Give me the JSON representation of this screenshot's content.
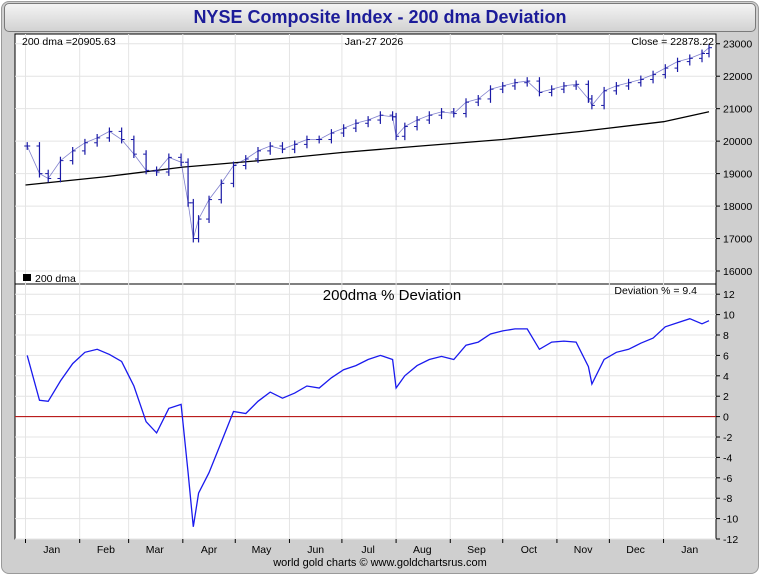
{
  "title": "NYSE Composite Index - 200 dma Deviation",
  "footer": "world gold charts © www.goldchartsrus.com",
  "colors": {
    "price": "#1a1aa6",
    "dma": "#000000",
    "deviation": "#1a1aee",
    "zero_line": "#b30000"
  },
  "chart_data": [
    {
      "type": "line",
      "panel": "price",
      "date_label": "Jan-27  2026",
      "dma_label": "200 dma =20905.63",
      "close_label": "Close = 22878.22",
      "legend": "200 dma",
      "ylim": [
        15600,
        23300
      ],
      "yticks": [
        16000,
        17000,
        18000,
        19000,
        20000,
        21000,
        22000,
        23000
      ],
      "x_months": [
        "Jan",
        "Feb",
        "Mar",
        "Apr",
        "May",
        "Jun",
        "Jul",
        "Aug",
        "Sep",
        "Oct",
        "Nov",
        "Dec",
        "Jan"
      ],
      "series": [
        {
          "legend_name": "Close",
          "style": "ohlc",
          "x": [
            "2025-01-02",
            "2025-01-09",
            "2025-01-14",
            "2025-01-21",
            "2025-01-28",
            "2025-02-04",
            "2025-02-11",
            "2025-02-18",
            "2025-02-25",
            "2025-03-04",
            "2025-03-11",
            "2025-03-17",
            "2025-03-24",
            "2025-03-31",
            "2025-04-04",
            "2025-04-07",
            "2025-04-10",
            "2025-04-16",
            "2025-04-23",
            "2025-04-30",
            "2025-05-07",
            "2025-05-14",
            "2025-05-21",
            "2025-05-28",
            "2025-06-04",
            "2025-06-11",
            "2025-06-18",
            "2025-06-25",
            "2025-07-02",
            "2025-07-09",
            "2025-07-16",
            "2025-07-23",
            "2025-07-30",
            "2025-08-01",
            "2025-08-06",
            "2025-08-13",
            "2025-08-20",
            "2025-08-27",
            "2025-09-03",
            "2025-09-10",
            "2025-09-17",
            "2025-09-24",
            "2025-10-01",
            "2025-10-08",
            "2025-10-15",
            "2025-10-22",
            "2025-10-29",
            "2025-11-05",
            "2025-11-12",
            "2025-11-19",
            "2025-11-21",
            "2025-11-28",
            "2025-12-05",
            "2025-12-12",
            "2025-12-19",
            "2025-12-26",
            "2026-01-02",
            "2026-01-09",
            "2026-01-16",
            "2026-01-23",
            "2026-01-27"
          ],
          "values": [
            19850,
            19000,
            18850,
            19400,
            19700,
            19950,
            20100,
            20300,
            20050,
            19600,
            19100,
            19050,
            19500,
            19350,
            18100,
            17000,
            17600,
            18200,
            18700,
            19250,
            19450,
            19700,
            19850,
            19750,
            19900,
            20050,
            20050,
            20250,
            20400,
            20550,
            20650,
            20800,
            20750,
            20150,
            20450,
            20650,
            20800,
            20900,
            20850,
            21200,
            21300,
            21600,
            21700,
            21800,
            21850,
            21500,
            21600,
            21700,
            21750,
            21300,
            21100,
            21550,
            21700,
            21800,
            21900,
            22050,
            22250,
            22450,
            22550,
            22700,
            22878
          ]
        },
        {
          "legend_name": "200 dma",
          "style": "line",
          "x": [
            "2025-01-01",
            "2025-02-15",
            "2025-04-01",
            "2025-05-15",
            "2025-07-01",
            "2025-08-15",
            "2025-10-01",
            "2025-11-15",
            "2026-01-01",
            "2026-01-27"
          ],
          "values": [
            18650,
            18900,
            19200,
            19400,
            19650,
            19850,
            20050,
            20300,
            20600,
            20906
          ]
        }
      ]
    },
    {
      "type": "line",
      "panel": "deviation",
      "title": "200dma  %  Deviation",
      "value_label": "Deviation % = 9.4",
      "ylim": [
        -12,
        13
      ],
      "yticks": [
        -12,
        -10,
        -8,
        -6,
        -4,
        -2,
        0,
        2,
        4,
        6,
        8,
        10,
        12
      ],
      "x_months": [
        "Jan",
        "Feb",
        "Mar",
        "Apr",
        "May",
        "Jun",
        "Jul",
        "Aug",
        "Sep",
        "Oct",
        "Nov",
        "Dec",
        "Jan"
      ],
      "series": [
        {
          "legend_name": "Deviation %",
          "x": [
            "2025-01-02",
            "2025-01-09",
            "2025-01-14",
            "2025-01-21",
            "2025-01-28",
            "2025-02-04",
            "2025-02-11",
            "2025-02-18",
            "2025-02-25",
            "2025-03-04",
            "2025-03-11",
            "2025-03-17",
            "2025-03-24",
            "2025-03-31",
            "2025-04-04",
            "2025-04-07",
            "2025-04-10",
            "2025-04-16",
            "2025-04-23",
            "2025-04-30",
            "2025-05-07",
            "2025-05-14",
            "2025-05-21",
            "2025-05-28",
            "2025-06-04",
            "2025-06-11",
            "2025-06-18",
            "2025-06-25",
            "2025-07-02",
            "2025-07-09",
            "2025-07-16",
            "2025-07-23",
            "2025-07-30",
            "2025-08-01",
            "2025-08-06",
            "2025-08-13",
            "2025-08-20",
            "2025-08-27",
            "2025-09-03",
            "2025-09-10",
            "2025-09-17",
            "2025-09-24",
            "2025-10-01",
            "2025-10-08",
            "2025-10-15",
            "2025-10-22",
            "2025-10-29",
            "2025-11-05",
            "2025-11-12",
            "2025-11-19",
            "2025-11-21",
            "2025-11-28",
            "2025-12-05",
            "2025-12-12",
            "2025-12-19",
            "2025-12-26",
            "2026-01-02",
            "2026-01-09",
            "2026-01-16",
            "2026-01-23",
            "2026-01-27"
          ],
          "values": [
            6.0,
            1.6,
            1.5,
            3.5,
            5.2,
            6.3,
            6.6,
            6.1,
            5.4,
            3.0,
            -0.5,
            -1.6,
            0.8,
            1.2,
            -5.5,
            -10.8,
            -7.5,
            -5.5,
            -2.5,
            0.5,
            0.3,
            1.5,
            2.4,
            1.8,
            2.3,
            3.0,
            2.8,
            3.8,
            4.6,
            5.0,
            5.6,
            6.0,
            5.6,
            2.8,
            4.0,
            5.0,
            5.6,
            5.9,
            5.6,
            7.0,
            7.3,
            8.1,
            8.4,
            8.6,
            8.6,
            6.6,
            7.3,
            7.4,
            7.3,
            4.9,
            3.2,
            5.6,
            6.3,
            6.6,
            7.2,
            7.7,
            8.8,
            9.2,
            9.6,
            9.1,
            9.4
          ]
        }
      ]
    }
  ]
}
